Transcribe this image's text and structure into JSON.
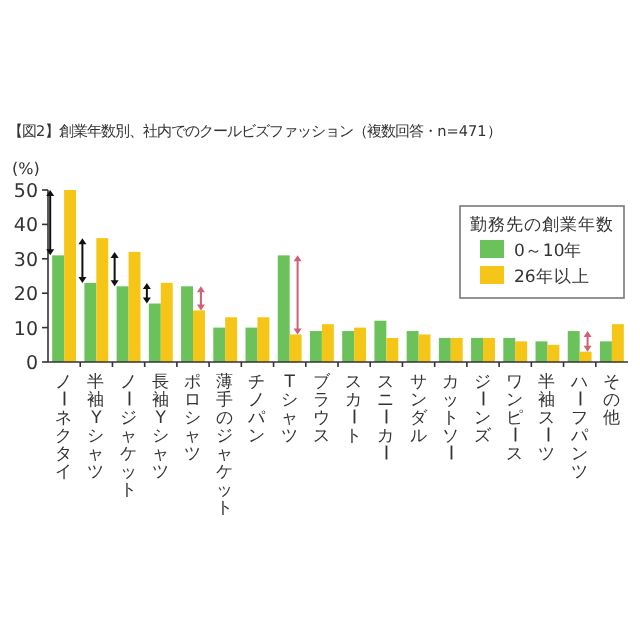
{
  "chart_data": {
    "type": "bar",
    "title": "【図2】創業年数別、社内でのクールビズファッション（複数回答・n=471）",
    "ylabel": "(%)",
    "legend_title": "勤務先の創業年数",
    "categories": [
      "ノーネクタイ",
      "半袖Yシャツ",
      "ノージャケット",
      "長袖Yシャツ",
      "ポロシャツ",
      "薄手のジャケット",
      "チノパン",
      "Tシャツ",
      "ブラウス",
      "スカート",
      "スニーカー",
      "サンダル",
      "カットソー",
      "ジーンズ",
      "ワンピース",
      "半袖スーツ",
      "ハーフパンツ",
      "その他"
    ],
    "series": [
      {
        "name": "0～10年",
        "color": "#6cc25a",
        "values": [
          31,
          23,
          22,
          17,
          22,
          10,
          10,
          31,
          9,
          9,
          12,
          9,
          7,
          7,
          7,
          6,
          9,
          6
        ]
      },
      {
        "name": "26年以上",
        "color": "#f5c518",
        "values": [
          50,
          36,
          32,
          23,
          15,
          13,
          13,
          8,
          11,
          10,
          7,
          8,
          7,
          7,
          6,
          5,
          3,
          11
        ]
      }
    ],
    "ylim": [
      0,
      50
    ],
    "yticks": [
      0,
      10,
      20,
      30,
      40,
      50
    ],
    "legend": "top right"
  }
}
